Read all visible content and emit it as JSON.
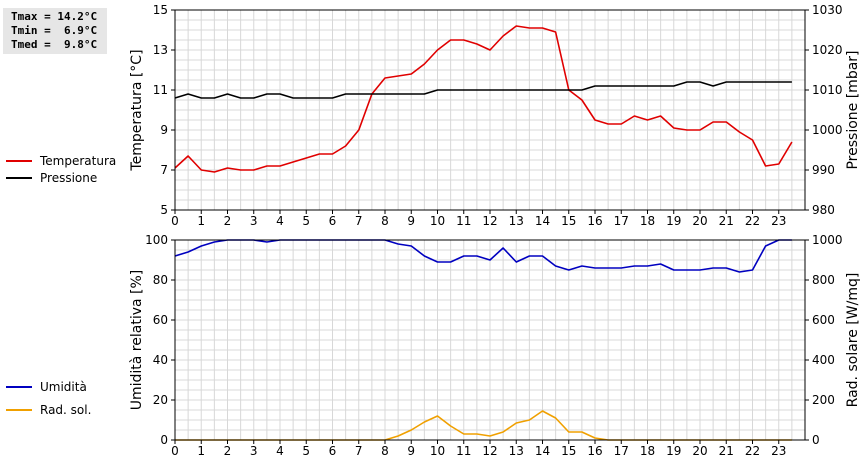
{
  "stats": {
    "tmax": "Tmax = 14.2°C",
    "tmin": "Tmin =  6.9°C",
    "tmed": "Tmed =  9.8°C"
  },
  "legend_top": {
    "items": [
      {
        "label": "Temperatura",
        "color": "#e00000"
      },
      {
        "label": "Pressione",
        "color": "#000000"
      }
    ]
  },
  "legend_bottom": {
    "items": [
      {
        "label": "Umidità",
        "color": "#0000c0"
      },
      {
        "label": "Rad. sol.",
        "color": "#f0a000"
      }
    ]
  },
  "chart_data": [
    {
      "type": "line",
      "ylabel_left": "Temperatura [°C]",
      "ylabel_right": "Pressione [mbar]",
      "ylim_left": [
        5,
        15
      ],
      "ylim_right": [
        980,
        1030
      ],
      "yticks_left": [
        5,
        7,
        9,
        11,
        13,
        15
      ],
      "yticks_right": [
        980,
        990,
        1000,
        1010,
        1020,
        1030
      ],
      "xlim": [
        0,
        24
      ],
      "xticks": [
        0,
        1,
        2,
        3,
        4,
        5,
        6,
        7,
        8,
        9,
        10,
        11,
        12,
        13,
        14,
        15,
        16,
        17,
        18,
        19,
        20,
        21,
        22,
        23
      ],
      "grid": true,
      "series": [
        {
          "name": "Temperatura",
          "axis": "left",
          "color": "#e00000",
          "x": [
            0,
            0.5,
            1,
            1.5,
            2,
            2.5,
            3,
            3.5,
            4,
            4.5,
            5,
            5.5,
            6,
            6.5,
            7,
            7.5,
            8,
            8.5,
            9,
            9.5,
            10,
            10.5,
            11,
            11.5,
            12,
            12.5,
            13,
            13.5,
            14,
            14.5,
            15,
            15.5,
            16,
            16.5,
            17,
            17.5,
            18,
            18.5,
            19,
            19.5,
            20,
            20.5,
            21,
            21.5,
            22,
            22.5,
            23,
            23.5
          ],
          "values": [
            7.1,
            7.7,
            7.0,
            6.9,
            7.1,
            7.0,
            7.0,
            7.2,
            7.2,
            7.4,
            7.6,
            7.8,
            7.8,
            8.2,
            9.0,
            10.8,
            11.6,
            11.7,
            11.8,
            12.3,
            13.0,
            13.5,
            13.5,
            13.3,
            13.0,
            13.7,
            14.2,
            14.1,
            14.1,
            13.9,
            11.0,
            10.5,
            9.5,
            9.3,
            9.3,
            9.7,
            9.5,
            9.7,
            9.1,
            9.0,
            9.0,
            9.4,
            9.4,
            8.9,
            8.5,
            7.2,
            7.3,
            8.4
          ]
        },
        {
          "name": "Pressione",
          "axis": "right",
          "color": "#000000",
          "x": [
            0,
            0.5,
            1,
            1.5,
            2,
            2.5,
            3,
            3.5,
            4,
            4.5,
            5,
            5.5,
            6,
            6.5,
            7,
            7.5,
            8,
            8.5,
            9,
            9.5,
            10,
            10.5,
            11,
            11.5,
            12,
            12.5,
            13,
            13.5,
            14,
            14.5,
            15,
            15.5,
            16,
            16.5,
            17,
            17.5,
            18,
            18.5,
            19,
            19.5,
            20,
            20.5,
            21,
            21.5,
            22,
            22.5,
            23,
            23.5
          ],
          "values": [
            1008,
            1009,
            1008,
            1008,
            1009,
            1008,
            1008,
            1009,
            1009,
            1008,
            1008,
            1008,
            1008,
            1009,
            1009,
            1009,
            1009,
            1009,
            1009,
            1009,
            1010,
            1010,
            1010,
            1010,
            1010,
            1010,
            1010,
            1010,
            1010,
            1010,
            1010,
            1010,
            1011,
            1011,
            1011,
            1011,
            1011,
            1011,
            1011,
            1012,
            1012,
            1011,
            1012,
            1012,
            1012,
            1012,
            1012,
            1012
          ]
        }
      ]
    },
    {
      "type": "line",
      "ylabel_left": "Umidità relativa [%]",
      "ylabel_right": "Rad. solare [W/mq]",
      "ylim_left": [
        0,
        100
      ],
      "ylim_right": [
        0,
        1000
      ],
      "yticks_left": [
        0,
        20,
        40,
        60,
        80,
        100
      ],
      "yticks_right": [
        0,
        200,
        400,
        600,
        800,
        1000
      ],
      "xlim": [
        0,
        24
      ],
      "xticks": [
        0,
        1,
        2,
        3,
        4,
        5,
        6,
        7,
        8,
        9,
        10,
        11,
        12,
        13,
        14,
        15,
        16,
        17,
        18,
        19,
        20,
        21,
        22,
        23
      ],
      "grid": true,
      "series": [
        {
          "name": "Umidità",
          "axis": "left",
          "color": "#0000c0",
          "x": [
            0,
            0.5,
            1,
            1.5,
            2,
            2.5,
            3,
            3.5,
            4,
            4.5,
            5,
            5.5,
            6,
            6.5,
            7,
            7.5,
            8,
            8.5,
            9,
            9.5,
            10,
            10.5,
            11,
            11.5,
            12,
            12.5,
            13,
            13.5,
            14,
            14.5,
            15,
            15.5,
            16,
            16.5,
            17,
            17.5,
            18,
            18.5,
            19,
            19.5,
            20,
            20.5,
            21,
            21.5,
            22,
            22.5,
            23,
            23.5
          ],
          "values": [
            92,
            94,
            97,
            99,
            100,
            100,
            100,
            99,
            100,
            100,
            100,
            100,
            100,
            100,
            100,
            100,
            100,
            98,
            97,
            92,
            89,
            89,
            92,
            92,
            90,
            96,
            89,
            92,
            92,
            87,
            85,
            87,
            86,
            86,
            86,
            87,
            87,
            88,
            85,
            85,
            85,
            86,
            86,
            84,
            85,
            97,
            100,
            100
          ]
        },
        {
          "name": "Rad. sol.",
          "axis": "right",
          "color": "#f0a000",
          "x": [
            0,
            0.5,
            1,
            1.5,
            2,
            2.5,
            3,
            3.5,
            4,
            4.5,
            5,
            5.5,
            6,
            6.5,
            7,
            7.5,
            8,
            8.5,
            9,
            9.5,
            10,
            10.5,
            11,
            11.5,
            12,
            12.5,
            13,
            13.5,
            14,
            14.5,
            15,
            15.5,
            16,
            16.5,
            17,
            17.5,
            18,
            18.5,
            19,
            19.5,
            20,
            20.5,
            21,
            21.5,
            22,
            22.5,
            23,
            23.5
          ],
          "values": [
            0,
            0,
            0,
            0,
            0,
            0,
            0,
            0,
            0,
            0,
            0,
            0,
            0,
            0,
            0,
            0,
            0,
            20,
            50,
            90,
            120,
            70,
            30,
            30,
            20,
            40,
            85,
            100,
            145,
            110,
            40,
            40,
            10,
            0,
            0,
            0,
            0,
            0,
            0,
            0,
            0,
            0,
            0,
            0,
            0,
            0,
            0,
            0
          ]
        }
      ]
    }
  ]
}
